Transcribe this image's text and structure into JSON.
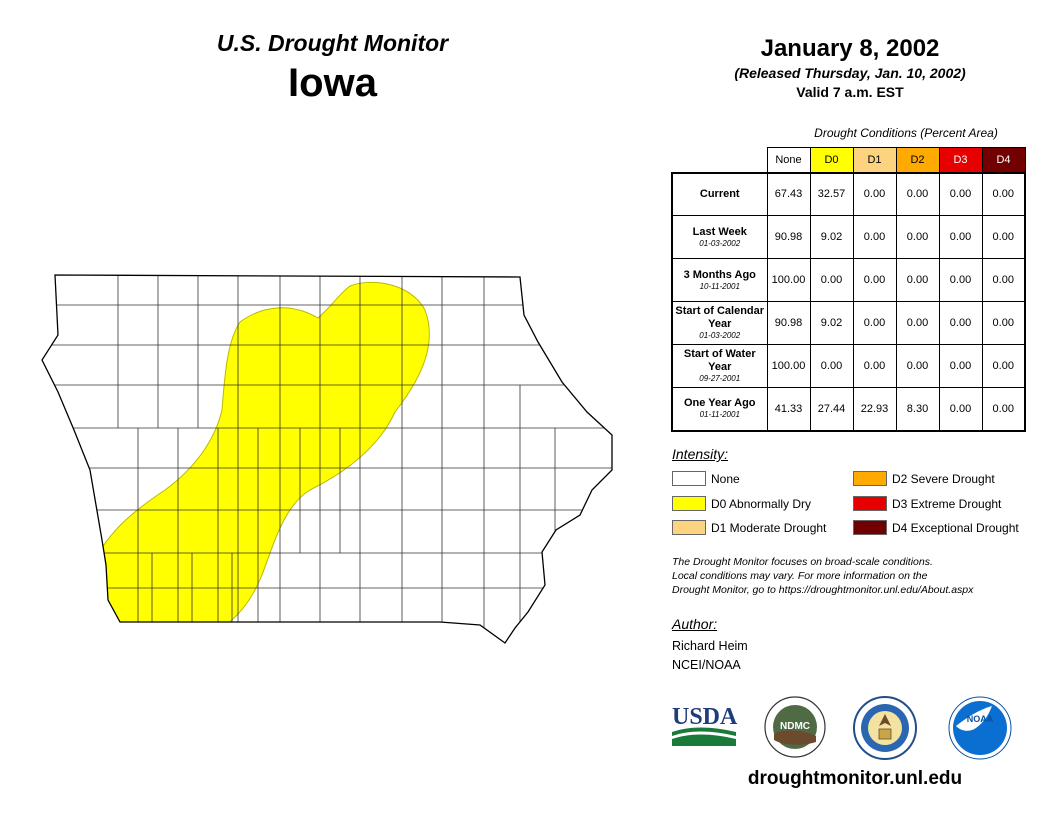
{
  "header": {
    "product": "U.S. Drought Monitor",
    "state": "Iowa",
    "date": "January 8, 2002",
    "released": "(Released Thursday, Jan. 10, 2002)",
    "valid": "Valid 7 a.m. EST"
  },
  "table": {
    "title": "Drought Conditions (Percent Area)",
    "columns": [
      {
        "label": "None",
        "color": "#ffffff",
        "text_color": "#000000"
      },
      {
        "label": "D0",
        "color": "#ffff00",
        "text_color": "#000000"
      },
      {
        "label": "D1",
        "color": "#fcd37f",
        "text_color": "#000000"
      },
      {
        "label": "D2",
        "color": "#ffaa00",
        "text_color": "#000000"
      },
      {
        "label": "D3",
        "color": "#e60000",
        "text_color": "#ffffff"
      },
      {
        "label": "D4",
        "color": "#730000",
        "text_color": "#ffffff"
      }
    ],
    "rows": [
      {
        "label": "Current",
        "date": "",
        "values": [
          "67.43",
          "32.57",
          "0.00",
          "0.00",
          "0.00",
          "0.00"
        ]
      },
      {
        "label": "Last Week",
        "date": "01-03-2002",
        "values": [
          "90.98",
          "9.02",
          "0.00",
          "0.00",
          "0.00",
          "0.00"
        ]
      },
      {
        "label": "3 Months Ago",
        "date": "10-11-2001",
        "values": [
          "100.00",
          "0.00",
          "0.00",
          "0.00",
          "0.00",
          "0.00"
        ]
      },
      {
        "label": "Start of Calendar Year",
        "date": "01-03-2002",
        "values": [
          "90.98",
          "9.02",
          "0.00",
          "0.00",
          "0.00",
          "0.00"
        ]
      },
      {
        "label": "Start of Water Year",
        "date": "09-27-2001",
        "values": [
          "100.00",
          "0.00",
          "0.00",
          "0.00",
          "0.00",
          "0.00"
        ]
      },
      {
        "label": "One Year Ago",
        "date": "01-11-2001",
        "values": [
          "41.33",
          "27.44",
          "22.93",
          "8.30",
          "0.00",
          "0.00"
        ]
      }
    ]
  },
  "legend": {
    "title": "Intensity:",
    "items": [
      {
        "label": "None",
        "color": "#ffffff"
      },
      {
        "label": "D0 Abnormally Dry",
        "color": "#ffff00"
      },
      {
        "label": "D1 Moderate Drought",
        "color": "#fcd37f"
      },
      {
        "label": "D2 Severe Drought",
        "color": "#ffaa00"
      },
      {
        "label": "D3 Extreme Drought",
        "color": "#e60000"
      },
      {
        "label": "D4 Exceptional Drought",
        "color": "#730000"
      }
    ]
  },
  "disclaimer": {
    "line1": "The Drought Monitor focuses on broad-scale conditions.",
    "line2": "Local conditions may vary. For more information on the",
    "line3": "Drought Monitor, go to https://droughtmonitor.unl.edu/About.aspx"
  },
  "author": {
    "title": "Author:",
    "name": "Richard Heim",
    "org": "NCEI/NOAA"
  },
  "logos": {
    "usda": "USDA",
    "ndmc": "NDMC",
    "noaa": "NOAA"
  },
  "website": "droughtmonitor.unl.edu"
}
